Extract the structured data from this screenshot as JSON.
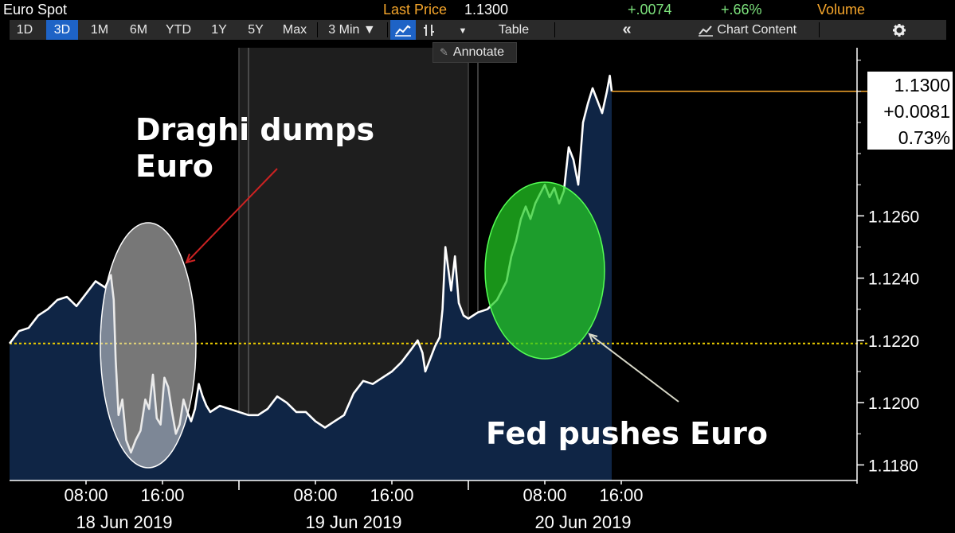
{
  "header": {
    "title": "Euro Spot",
    "last_price_label": "Last Price",
    "last_price": "1.1300",
    "change": "+.0074",
    "change_pct": "+.66%",
    "volume_label": "Volume"
  },
  "toolbar": {
    "periods": [
      "1D",
      "3D",
      "1M",
      "6M",
      "YTD",
      "1Y",
      "5Y",
      "Max"
    ],
    "active_period": "3D",
    "interval": "3 Min ▼",
    "table_label": "Table",
    "collapse_label": "«",
    "chart_content_label": "Chart Content",
    "annotate_label": "Annotate"
  },
  "colors": {
    "accent_orange": "#f6a62b",
    "positive_green": "#7de37d",
    "active_blue": "#1e63c6",
    "area_fill": "#0f2545",
    "price_line": "#ffffff",
    "reference_line": "#f0d000",
    "draghi_ellipse": "#d9d9d9",
    "fed_ellipse": "#22cc22",
    "draghi_arrow": "#cc2222",
    "fed_arrow": "#d8d8c8"
  },
  "icons": {
    "line_chart": "line-chart-icon",
    "bar_chart": "bar-chart-icon",
    "dropdown": "dropdown-arrow-icon",
    "chart_content": "chart-content-icon",
    "settings": "gear-icon",
    "annotate": "pencil-icon"
  },
  "price_box": {
    "price": "1.1300",
    "change": "+0.0081",
    "change_pct": "0.73%"
  },
  "annotations": {
    "draghi_line1": "Draghi dumps",
    "draghi_line2": "Euro",
    "fed": "Fed pushes Euro"
  },
  "chart_data": {
    "type": "line",
    "title": "",
    "xlabel": "",
    "ylabel": "",
    "ylim": [
      1.1175,
      1.1314
    ],
    "y_ticks": [
      1.118,
      1.12,
      1.122,
      1.124,
      1.126
    ],
    "y_tick_labels": [
      "1.1180",
      "1.1200",
      "1.1220",
      "1.1240",
      "1.1260"
    ],
    "xlim": [
      0,
      99
    ],
    "x_unit": "hours since 18 Jun 2019 00:00",
    "x_ticks": [
      {
        "x": 8,
        "label": "08:00"
      },
      {
        "x": 16,
        "label": "16:00"
      },
      {
        "x": 32,
        "label": "08:00"
      },
      {
        "x": 40,
        "label": "16:00"
      },
      {
        "x": 56,
        "label": "08:00"
      },
      {
        "x": 64,
        "label": "16:00"
      }
    ],
    "date_labels": [
      {
        "x": 12,
        "label": "18 Jun 2019"
      },
      {
        "x": 36,
        "label": "19 Jun 2019"
      },
      {
        "x": 60,
        "label": "20 Jun 2019"
      }
    ],
    "shaded_range": [
      24,
      48
    ],
    "day_boundaries": [
      24,
      48
    ],
    "session_markers": [
      25.0,
      49.0
    ],
    "reference_value": 1.1219,
    "last_value": 1.13,
    "grid": false,
    "series": [
      {
        "points": [
          [
            0.0,
            1.1219
          ],
          [
            1.0,
            1.1223
          ],
          [
            2.0,
            1.1224
          ],
          [
            3.0,
            1.1228
          ],
          [
            4.0,
            1.123
          ],
          [
            5.0,
            1.1233
          ],
          [
            6.0,
            1.1234
          ],
          [
            7.0,
            1.1231
          ],
          [
            8.0,
            1.1235
          ],
          [
            9.0,
            1.1239
          ],
          [
            10.0,
            1.1237
          ],
          [
            10.6,
            1.1241
          ],
          [
            10.9,
            1.1233
          ],
          [
            11.1,
            1.1214
          ],
          [
            11.4,
            1.1196
          ],
          [
            11.8,
            1.1201
          ],
          [
            12.2,
            1.1188
          ],
          [
            12.7,
            1.1184
          ],
          [
            13.2,
            1.1188
          ],
          [
            13.7,
            1.1191
          ],
          [
            14.2,
            1.1201
          ],
          [
            14.6,
            1.1198
          ],
          [
            15.0,
            1.1209
          ],
          [
            15.4,
            1.1195
          ],
          [
            15.8,
            1.1193
          ],
          [
            16.2,
            1.1208
          ],
          [
            16.6,
            1.1205
          ],
          [
            17.0,
            1.1197
          ],
          [
            17.4,
            1.119
          ],
          [
            17.8,
            1.1193
          ],
          [
            18.2,
            1.1201
          ],
          [
            18.6,
            1.1197
          ],
          [
            19.0,
            1.1194
          ],
          [
            19.4,
            1.1198
          ],
          [
            19.8,
            1.1206
          ],
          [
            20.2,
            1.1202
          ],
          [
            20.6,
            1.1199
          ],
          [
            21.0,
            1.1197
          ],
          [
            22.0,
            1.1199
          ],
          [
            23.0,
            1.1198
          ],
          [
            24.0,
            1.1197
          ],
          [
            25.0,
            1.1196
          ],
          [
            26.0,
            1.1196
          ],
          [
            27.0,
            1.1198
          ],
          [
            28.0,
            1.1202
          ],
          [
            29.0,
            1.12
          ],
          [
            30.0,
            1.1197
          ],
          [
            31.0,
            1.1197
          ],
          [
            32.0,
            1.1194
          ],
          [
            33.0,
            1.1192
          ],
          [
            34.0,
            1.1194
          ],
          [
            35.0,
            1.1196
          ],
          [
            36.0,
            1.1203
          ],
          [
            37.0,
            1.1207
          ],
          [
            38.0,
            1.1206
          ],
          [
            39.0,
            1.1208
          ],
          [
            40.0,
            1.121
          ],
          [
            41.0,
            1.1213
          ],
          [
            42.0,
            1.1217
          ],
          [
            42.7,
            1.122
          ],
          [
            43.2,
            1.1216
          ],
          [
            43.5,
            1.121
          ],
          [
            44.0,
            1.1214
          ],
          [
            44.5,
            1.1218
          ],
          [
            45.0,
            1.1221
          ],
          [
            45.3,
            1.123
          ],
          [
            45.6,
            1.125
          ],
          [
            45.9,
            1.1243
          ],
          [
            46.2,
            1.1236
          ],
          [
            46.6,
            1.1247
          ],
          [
            47.0,
            1.1232
          ],
          [
            47.5,
            1.1228
          ],
          [
            48.0,
            1.1227
          ],
          [
            49.0,
            1.1229
          ],
          [
            50.0,
            1.123
          ],
          [
            51.0,
            1.1233
          ],
          [
            51.5,
            1.1236
          ],
          [
            52.0,
            1.1239
          ],
          [
            52.5,
            1.1247
          ],
          [
            53.0,
            1.1252
          ],
          [
            53.5,
            1.1259
          ],
          [
            54.0,
            1.1263
          ],
          [
            54.5,
            1.1259
          ],
          [
            55.0,
            1.1264
          ],
          [
            55.5,
            1.1267
          ],
          [
            56.0,
            1.127
          ],
          [
            56.5,
            1.1266
          ],
          [
            57.0,
            1.1269
          ],
          [
            57.5,
            1.1264
          ],
          [
            58.0,
            1.1268
          ],
          [
            58.5,
            1.1282
          ],
          [
            59.0,
            1.1278
          ],
          [
            59.5,
            1.127
          ],
          [
            60.0,
            1.129
          ],
          [
            60.5,
            1.1296
          ],
          [
            61.0,
            1.1301
          ],
          [
            61.5,
            1.1297
          ],
          [
            62.0,
            1.1293
          ],
          [
            62.5,
            1.13
          ],
          [
            62.8,
            1.1305
          ],
          [
            63.0,
            1.13
          ]
        ]
      }
    ]
  }
}
